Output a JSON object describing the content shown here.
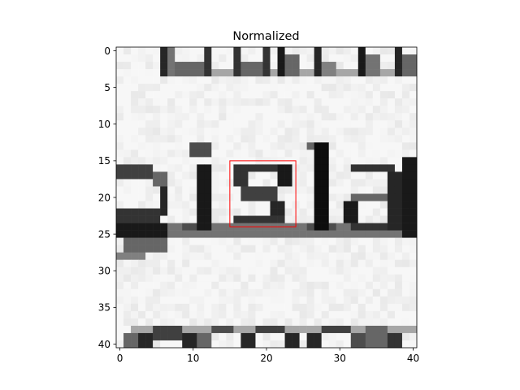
{
  "chart_data": {
    "type": "heatmap",
    "title": "Normalized",
    "xlabel": "",
    "ylabel": "",
    "xlim": [
      -0.5,
      40.5
    ],
    "ylim": [
      40.5,
      -0.5
    ],
    "grid": false,
    "colormap": "gray",
    "x_ticks": [
      0,
      10,
      20,
      30,
      40
    ],
    "x_tick_labels": [
      "0",
      "10",
      "20",
      "30",
      "40"
    ],
    "y_ticks": [
      0,
      5,
      10,
      15,
      20,
      25,
      30,
      35,
      40
    ],
    "y_tick_labels": [
      "0",
      "5",
      "10",
      "15",
      "20",
      "25",
      "30",
      "35",
      "40"
    ],
    "image_shape": [
      41,
      41
    ],
    "image_content": "grayscale scan of printed text; visible word fragments 'pisla' with partial letters above and below",
    "highlight_box": {
      "x": [
        15,
        24
      ],
      "y": [
        15,
        24
      ],
      "color": "#ff0000"
    }
  }
}
